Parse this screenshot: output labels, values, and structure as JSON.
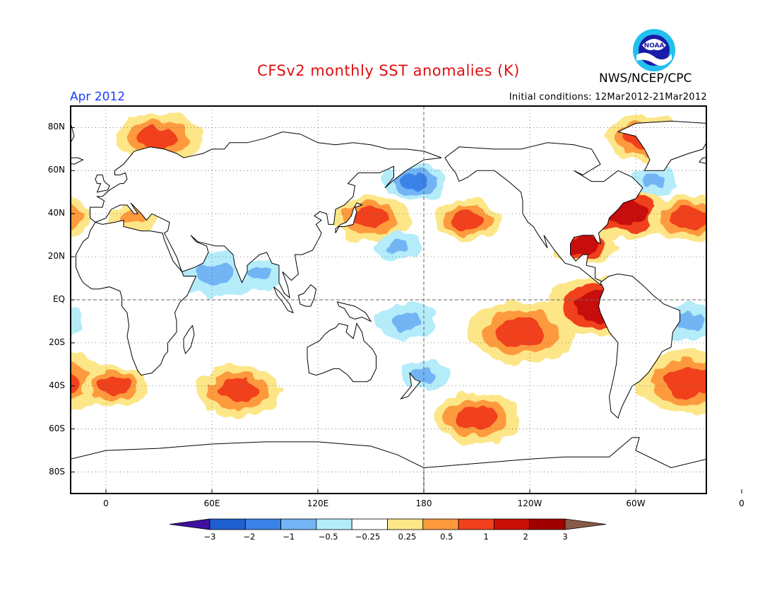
{
  "header": {
    "title": "CFSv2 monthly SST anomalies (K)",
    "agency": "NWS/NCEP/CPC",
    "logo_text": "NOAA",
    "month": "Apr 2012",
    "initial_conditions": "Initial conditions: 12Mar2012-21Mar2012"
  },
  "map": {
    "projection": "cylindrical equidistant",
    "lon_range": [
      -20,
      340
    ],
    "lat_range": [
      -90,
      90
    ],
    "y_ticks": [
      "80N",
      "60N",
      "40N",
      "20N",
      "EQ",
      "20S",
      "40S",
      "60S",
      "80S"
    ],
    "x_ticks": [
      "0",
      "60E",
      "120E",
      "180",
      "120W",
      "60W",
      "0"
    ],
    "grid": "dotted",
    "reference_lines": [
      "equator",
      "dateline"
    ],
    "land_color": "#ffffff",
    "coastline_color": "#000000"
  },
  "colorbar": {
    "levels": [
      "-3",
      "-2",
      "-1",
      "-0.5",
      "-0.25",
      "0.25",
      "0.5",
      "1",
      "2",
      "3"
    ],
    "colors": [
      "#3f0fa0",
      "#1f5fd0",
      "#3a82e8",
      "#72b4f4",
      "#b4ecfa",
      "#ffffff",
      "#fce688",
      "#fd9a3c",
      "#f0401c",
      "#c81008",
      "#a00000",
      "#8a5a48"
    ]
  },
  "anomaly_regions": [
    {
      "name": "NE Pacific warm",
      "lon": 205,
      "lat": 37,
      "value": 1.5
    },
    {
      "name": "N Pacific cool",
      "lon": 175,
      "lat": 55,
      "value": -1
    },
    {
      "name": "Kuroshio mixed",
      "lon": 150,
      "lat": 38,
      "value": 1
    },
    {
      "name": "Subtropical N Pacific cool",
      "lon": 165,
      "lat": 25,
      "value": -0.7
    },
    {
      "name": "Central tropical Pacific cool",
      "lon": 170,
      "lat": -10,
      "value": -0.7
    },
    {
      "name": "SE Pacific warm",
      "lon": 235,
      "lat": -15,
      "value": 1.5
    },
    {
      "name": "SW Pacific cool",
      "lon": 180,
      "lat": -35,
      "value": -0.7
    },
    {
      "name": "S Pacific warm patch",
      "lon": 210,
      "lat": -55,
      "value": 1.5
    },
    {
      "name": "Peru coast warm",
      "lon": 280,
      "lat": -3,
      "value": 2
    },
    {
      "name": "Gulf of Mexico warm",
      "lon": 270,
      "lat": 25,
      "value": 2
    },
    {
      "name": "NW Atlantic warm",
      "lon": 295,
      "lat": 40,
      "value": 2
    },
    {
      "name": "N Atlantic warm",
      "lon": 330,
      "lat": 38,
      "value": 1
    },
    {
      "name": "Subpolar N Atlantic cool",
      "lon": 310,
      "lat": 55,
      "value": -0.7
    },
    {
      "name": "Tropical S Atlantic cool",
      "lon": 330,
      "lat": -10,
      "value": -0.7
    },
    {
      "name": "S Atlantic warm",
      "lon": 330,
      "lat": -38,
      "value": 1.5
    },
    {
      "name": "SE Atlantic warm",
      "lon": 5,
      "lat": -40,
      "value": 1.5
    },
    {
      "name": "Southern Indian Ocean warm",
      "lon": 75,
      "lat": -42,
      "value": 1.5
    },
    {
      "name": "Arabian Sea cool",
      "lon": 62,
      "lat": 12,
      "value": -0.7
    },
    {
      "name": "Bay of Bengal cool",
      "lon": 88,
      "lat": 12,
      "value": -0.7
    },
    {
      "name": "Barents Sea warm",
      "lon": 30,
      "lat": 75,
      "value": 1.5
    },
    {
      "name": "Labrador warm",
      "lon": 305,
      "lat": 75,
      "value": 1
    },
    {
      "name": "Mediterranean warm",
      "lon": 15,
      "lat": 38,
      "value": 0.5
    }
  ]
}
